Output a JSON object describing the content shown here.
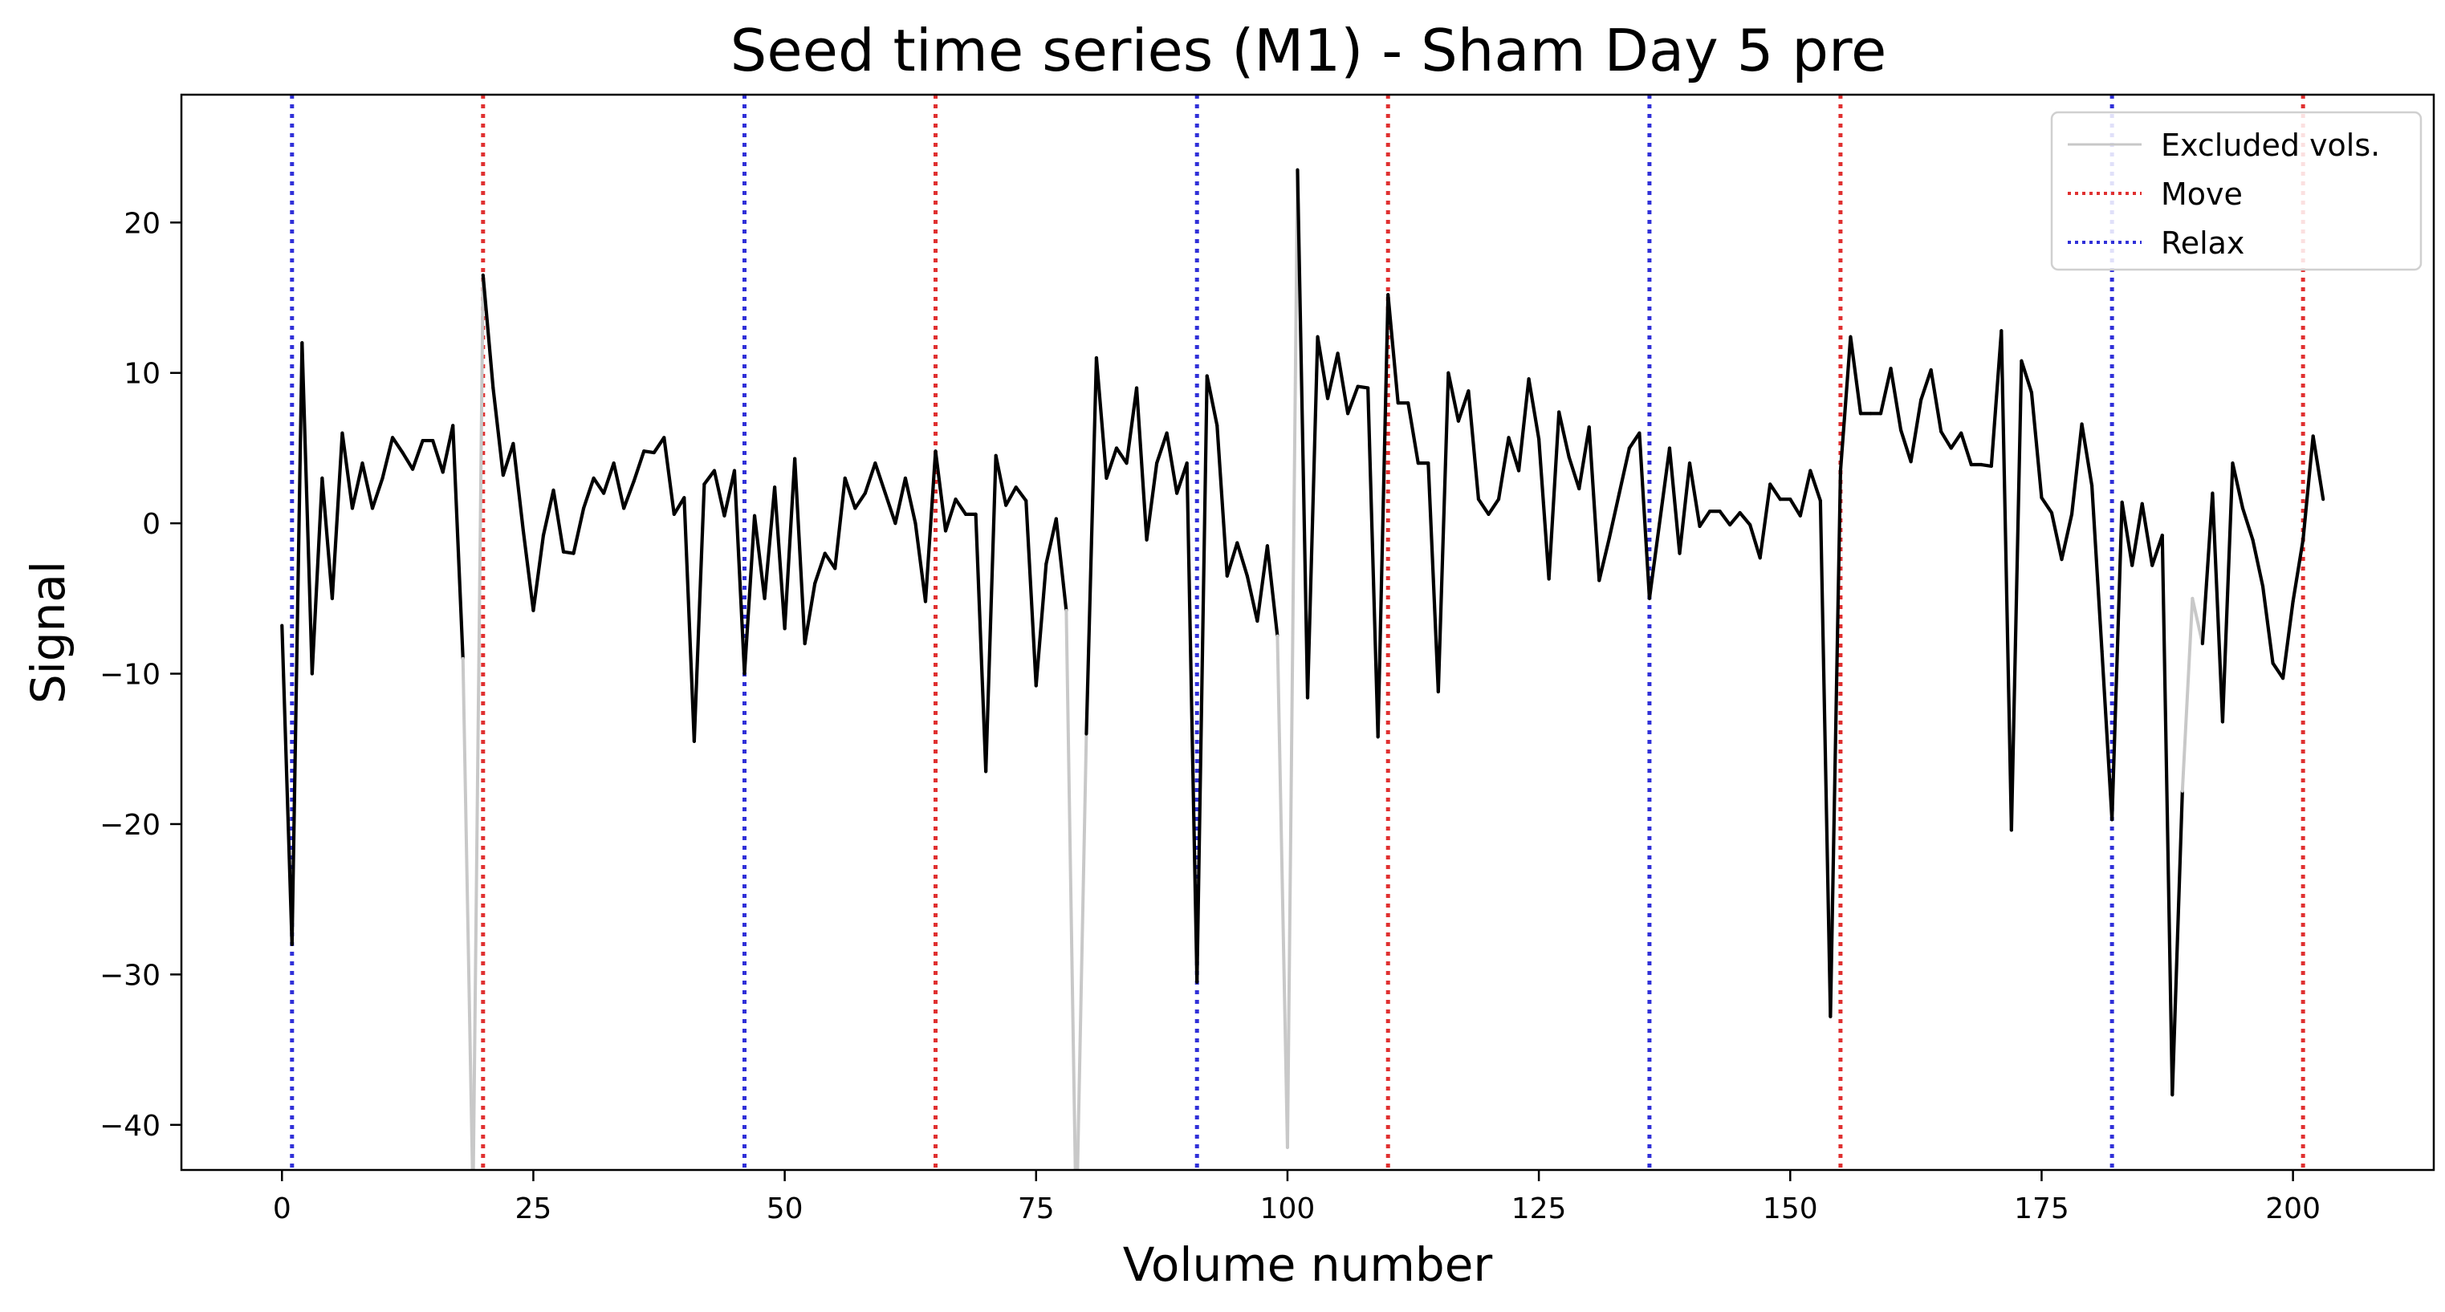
{
  "chart_data": {
    "type": "line",
    "title": "Seed time series (M1) - Sham Day 5 pre",
    "xlabel": "Volume number",
    "ylabel": "Signal",
    "xlim": [
      -10,
      214
    ],
    "ylim": [
      -43,
      28.5
    ],
    "xticks": [
      0,
      25,
      50,
      75,
      100,
      125,
      150,
      175,
      200
    ],
    "yticks": [
      -40,
      -30,
      -20,
      -10,
      0,
      10,
      20
    ],
    "xtick_labels": [
      "0",
      "25",
      "50",
      "75",
      "100",
      "125",
      "150",
      "175",
      "200"
    ],
    "ytick_labels": [
      "−40",
      "−30",
      "−20",
      "−10",
      "0",
      "10",
      "20"
    ],
    "grid": false,
    "legend_position": "top-right",
    "legend": [
      {
        "label": "Excluded vols.",
        "color": "#c8c8c8",
        "style": "solid"
      },
      {
        "label": "Move",
        "color": "#e03030",
        "style": "dotted"
      },
      {
        "label": "Relax",
        "color": "#3030d8",
        "style": "dotted"
      }
    ],
    "colors": {
      "signal": "#000000",
      "excluded": "#c8c8c8",
      "move": "#e03030",
      "relax": "#3030d8"
    },
    "move_onsets": [
      20,
      65,
      110,
      155,
      201
    ],
    "relax_onsets": [
      1,
      46,
      91,
      136,
      182
    ],
    "excluded_volumes": [
      19,
      79,
      100,
      190
    ],
    "signal": [
      -6.8,
      -28,
      12,
      -10,
      3,
      -5,
      6,
      1,
      4,
      1,
      3,
      5.7,
      4.7,
      3.6,
      5.5,
      5.5,
      3.4,
      6.5,
      -9,
      -45,
      16.5,
      9,
      3.2,
      5.3,
      -0.5,
      -5.8,
      -0.8,
      2.2,
      -1.9,
      -2,
      1,
      3,
      2,
      4,
      1,
      2.8,
      4.8,
      4.7,
      5.7,
      0.6,
      1.7,
      -14.5,
      2.6,
      3.5,
      0.5,
      3.5,
      -10,
      0.5,
      -5,
      2.4,
      -7,
      4.3,
      -8,
      -4,
      -2,
      -3,
      3,
      1,
      2,
      4,
      2,
      0,
      3,
      0,
      -5.2,
      4.8,
      -0.5,
      1.6,
      0.6,
      0.6,
      -16.5,
      4.5,
      1.2,
      2.4,
      1.5,
      -10.8,
      -2.7,
      0.3,
      -5.8,
      -47,
      -14,
      11,
      3,
      5,
      4,
      9,
      -1.1,
      4,
      6,
      2,
      4,
      -30.5,
      9.8,
      6.5,
      -3.5,
      -1.3,
      -3.5,
      -6.5,
      -1.5,
      -7.5,
      -41.5,
      23.5,
      -11.6,
      12.4,
      8.3,
      11.3,
      7.3,
      9.1,
      9,
      -14.2,
      15.2,
      8,
      8,
      4,
      4,
      -11.2,
      10,
      6.8,
      8.8,
      1.6,
      0.6,
      1.6,
      5.7,
      3.5,
      9.6,
      5.6,
      -3.7,
      7.4,
      4.4,
      2.3,
      6.4,
      -3.8,
      -1,
      2,
      5,
      6,
      -5,
      0,
      5,
      -2,
      4,
      -0.2,
      0.8,
      0.8,
      -0.1,
      0.7,
      -0.1,
      -2.3,
      2.6,
      1.6,
      1.6,
      0.5,
      3.5,
      1.5,
      -32.8,
      3.5,
      12.4,
      7.3,
      7.3,
      7.3,
      10.3,
      6.2,
      4.1,
      8.2,
      10.2,
      6.1,
      5,
      6,
      3.9,
      3.9,
      3.8,
      12.8,
      -20.4,
      10.8,
      8.7,
      1.7,
      0.7,
      -2.4,
      0.6,
      6.6,
      2.5,
      -8.5,
      -19.7,
      1.4,
      -2.8,
      1.3,
      -2.8,
      -0.8,
      -38,
      -17.8,
      -5,
      -8,
      2,
      -13.2,
      4,
      1,
      -1.1,
      -4.2,
      -9.3,
      -10.3,
      -5.2,
      -1.1,
      5.8,
      1.6
    ]
  }
}
